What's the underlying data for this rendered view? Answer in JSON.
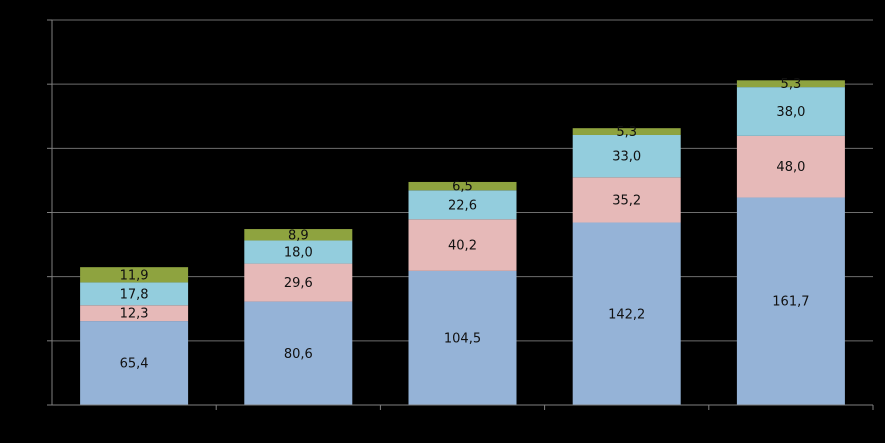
{
  "chart_data": {
    "type": "stacked-bar",
    "categories": [
      "",
      "",
      "",
      "",
      ""
    ],
    "series": [
      {
        "color": "#95B3D7",
        "values": [
          65.4,
          80.6,
          104.5,
          142.2,
          161.7
        ],
        "labels": [
          "65,4",
          "80,6",
          "104,5",
          "142,2",
          "161,7"
        ]
      },
      {
        "color": "#E6B9B8",
        "values": [
          12.3,
          29.6,
          40.2,
          35.2,
          48.0
        ],
        "labels": [
          "12,3",
          "29,6",
          "40,2",
          "35,2",
          "48,0"
        ]
      },
      {
        "color": "#93CDDD",
        "values": [
          17.8,
          18.0,
          22.6,
          33.0,
          38.0
        ],
        "labels": [
          "17,8",
          "18,0",
          "22,6",
          "33,0",
          "38,0"
        ]
      },
      {
        "color": "#8EA33F",
        "values": [
          11.9,
          8.9,
          6.5,
          5.3,
          5.3
        ],
        "labels": [
          "11,9",
          "8,9",
          "6,5",
          "5,3",
          "5,3"
        ]
      }
    ],
    "ylim": [
      0,
      300
    ],
    "y_major_step": 50,
    "grid": true,
    "title": "",
    "xlabel": "",
    "ylabel": "",
    "colors": {
      "background": "#000000",
      "axis": "#808080",
      "grid": "#6E6E6E",
      "label_text": "#111111"
    }
  }
}
